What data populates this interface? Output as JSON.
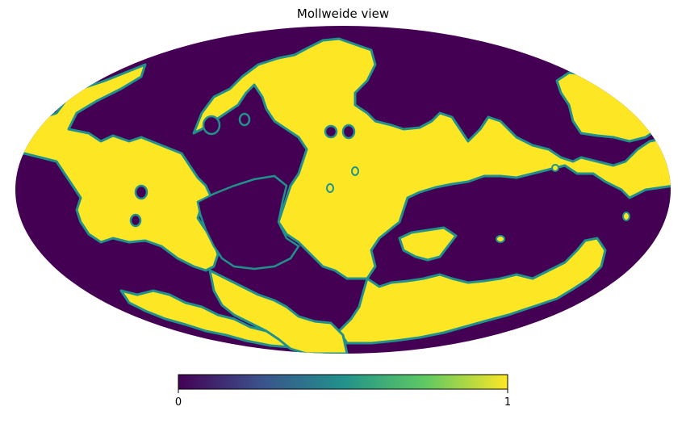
{
  "chart_data": {
    "type": "heatmap",
    "projection": "mollweide",
    "title": "Mollweide view",
    "colormap": "viridis",
    "colormap_stops": [
      "#440154",
      "#3b528b",
      "#21918c",
      "#5ec962",
      "#fde725"
    ],
    "values_present": [
      0,
      1
    ],
    "colors": {
      "low": "#440154",
      "high": "#fde725",
      "edge": "#21918c"
    },
    "colorbar": {
      "range": [
        0,
        1
      ],
      "ticks": [
        "0",
        "1"
      ]
    }
  }
}
